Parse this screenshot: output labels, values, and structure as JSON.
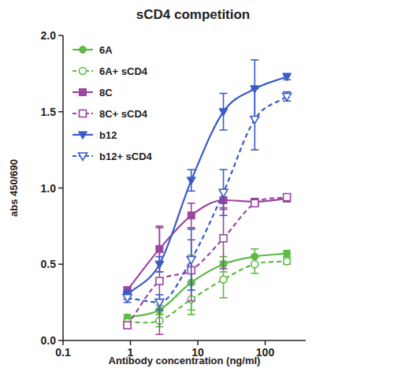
{
  "chart_data": {
    "type": "scatter",
    "title": "sCD4 competition",
    "x_label": "Antibody concentration (ng/ml)",
    "y_label": "abs 450/690",
    "log": "x",
    "grid": false,
    "legend": "upper-left",
    "x": [
      0.9,
      2.7,
      8,
      24,
      70,
      210
    ],
    "xlim": [
      0.1,
      400
    ],
    "xticks": [
      0.1,
      1,
      10,
      100
    ],
    "ylim": [
      0,
      2
    ],
    "yticks": [
      {
        "value": 0,
        "label": "0.0"
      },
      {
        "value": 0.5,
        "label": "0.5"
      },
      {
        "value": 1,
        "label": "1.0"
      },
      {
        "value": 1.5,
        "label": "1.5"
      },
      {
        "value": 2,
        "label": "2.0"
      }
    ],
    "series": [
      {
        "name": "6A",
        "color": "#5dbb46",
        "marker": "circle",
        "line_style": "solid",
        "values": [
          0.15,
          0.2,
          0.38,
          0.5,
          0.55,
          0.57
        ],
        "errors": [
          0.02,
          0.03,
          0.18,
          0.05,
          0.05,
          0.02
        ]
      },
      {
        "name": "6A+ sCD4",
        "color": "#5dbb46",
        "marker": "circle-open",
        "line_style": "dashed",
        "values": [
          0.12,
          0.13,
          0.27,
          0.4,
          0.5,
          0.52
        ],
        "errors": [
          0.02,
          0.04,
          0.1,
          0.12,
          0.06,
          0.02
        ]
      },
      {
        "name": "8C",
        "color": "#9b46a0",
        "marker": "square",
        "line_style": "solid",
        "values": [
          0.33,
          0.6,
          0.82,
          0.92,
          0.91,
          0.93
        ],
        "errors": [
          0.02,
          0.15,
          0.08,
          0.06,
          0.02,
          0.02
        ]
      },
      {
        "name": "8C+ sCD4",
        "color": "#9b46a0",
        "marker": "square-open",
        "line_style": "dashed",
        "values": [
          0.1,
          0.39,
          0.46,
          0.67,
          0.9,
          0.94
        ],
        "errors": [
          0.02,
          0.35,
          0.2,
          0.2,
          0.02,
          0.02
        ]
      },
      {
        "name": "b12",
        "color": "#3a5cc8",
        "marker": "triangle-down",
        "line_style": "solid",
        "values": [
          0.3,
          0.5,
          1.05,
          1.5,
          1.65,
          1.73
        ],
        "errors": [
          0.03,
          0.05,
          0.07,
          0.12,
          0.19,
          0.02
        ]
      },
      {
        "name": "b12+ sCD4",
        "color": "#3a5cc8",
        "marker": "triangle-down-open",
        "line_style": "dashed",
        "values": [
          0.28,
          0.25,
          0.53,
          0.97,
          1.45,
          1.6
        ],
        "errors": [
          0.03,
          0.05,
          0.2,
          0.15,
          0.2,
          0.03
        ]
      }
    ]
  }
}
